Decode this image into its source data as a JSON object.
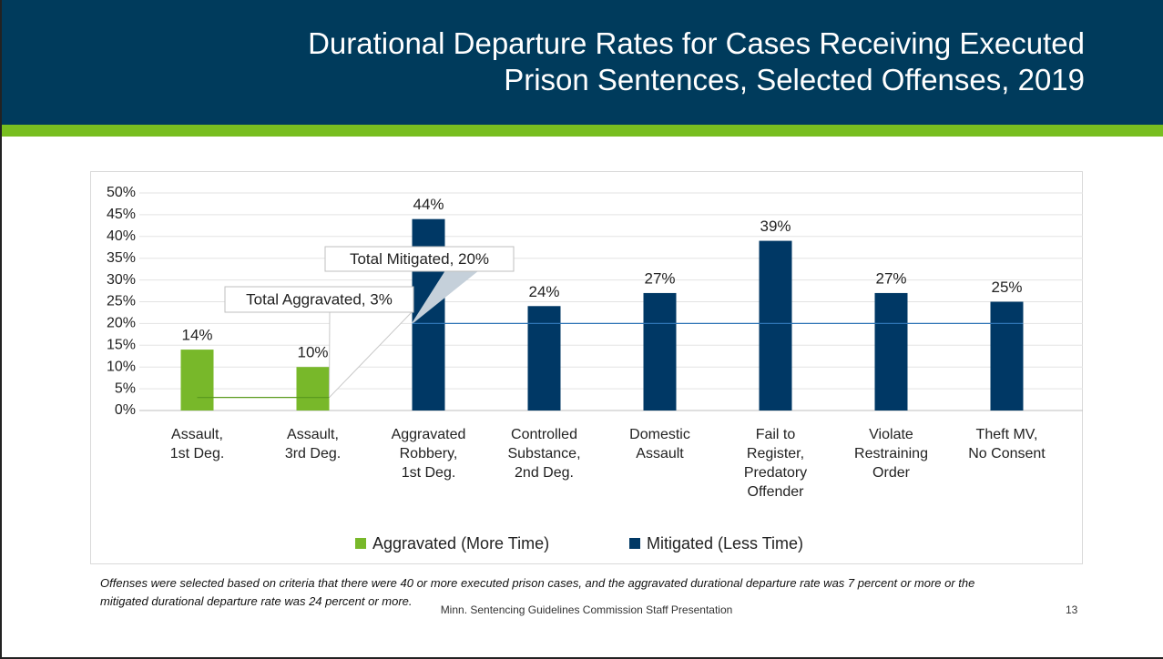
{
  "header": {
    "title": "Durational Departure Rates for Cases Receiving Executed\nPrison Sentences, Selected Offenses, 2019"
  },
  "chart_data": {
    "type": "bar",
    "categories": [
      "Assault,\n1st Deg.",
      "Assault,\n3rd Deg.",
      "Aggravated\nRobbery,\n1st Deg.",
      "Controlled\nSubstance,\n2nd Deg.",
      "Domestic\nAssault",
      "Fail to\nRegister,\nPredatory\nOffender",
      "Violate\nRestraining\nOrder",
      "Theft MV,\nNo Consent"
    ],
    "series": [
      {
        "name": "Aggravated (More Time)",
        "color": "#78b82a",
        "values": [
          14,
          10,
          null,
          null,
          null,
          null,
          null,
          null
        ],
        "value_labels": [
          "14%",
          "10%",
          null,
          null,
          null,
          null,
          null,
          null
        ],
        "total": {
          "label": "Total Aggravated, 3%",
          "value": 3,
          "color": "#5a9a1e"
        }
      },
      {
        "name": "Mitigated (Less Time)",
        "color": "#003865",
        "values": [
          null,
          null,
          44,
          24,
          27,
          39,
          27,
          25
        ],
        "value_labels": [
          null,
          null,
          "44%",
          "24%",
          "27%",
          "39%",
          "27%",
          "25%"
        ],
        "total": {
          "label": "Total Mitigated, 20%",
          "value": 20,
          "color": "#2e75b6"
        }
      }
    ],
    "ylim": [
      0,
      50
    ],
    "yticks": [
      {
        "value": 0,
        "label": "0%"
      },
      {
        "value": 5,
        "label": "5%"
      },
      {
        "value": 10,
        "label": "10%"
      },
      {
        "value": 15,
        "label": "15%"
      },
      {
        "value": 20,
        "label": "20%"
      },
      {
        "value": 25,
        "label": "25%"
      },
      {
        "value": 30,
        "label": "30%"
      },
      {
        "value": 35,
        "label": "35%"
      },
      {
        "value": 40,
        "label": "40%"
      },
      {
        "value": 45,
        "label": "45%"
      },
      {
        "value": 50,
        "label": "50%"
      }
    ],
    "grid": true,
    "legend": "bottom"
  },
  "footnote": "Offenses were selected based on criteria that there were 40 or more executed prison cases, and the aggravated durational departure rate was 7 percent or more or the mitigated durational departure rate was 24 percent or more.",
  "footer": {
    "source": "Minn. Sentencing Guidelines Commission Staff Presentation",
    "page": "13"
  }
}
